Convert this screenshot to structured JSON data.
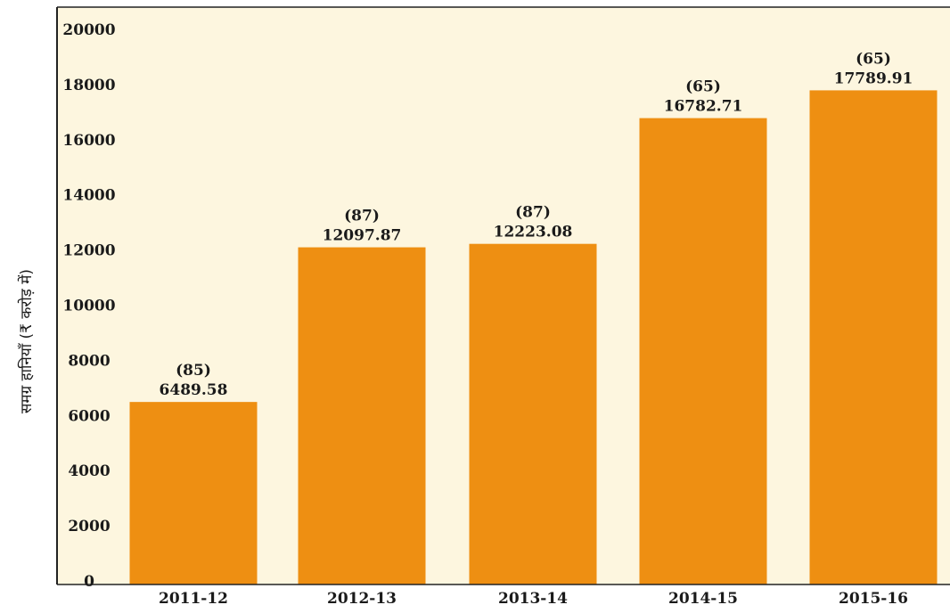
{
  "chart_data": {
    "type": "bar",
    "ylabel": "समग्र हानियाँ (₹ करोड़ में)",
    "categories": [
      "2011-12",
      "2012-13",
      "2013-14",
      "2014-15",
      "2015-16"
    ],
    "values": [
      6489.58,
      12097.87,
      12223.08,
      16782.71,
      17789.91
    ],
    "value_labels": [
      "6489.58",
      "12097.87",
      "12223.08",
      "16782.71",
      "17789.91"
    ],
    "secondary_labels": [
      "(85)",
      "(87)",
      "(87)",
      "(65)",
      "(65)"
    ],
    "yticks": [
      "0",
      "2000",
      "4000",
      "6000",
      "8000",
      "10000",
      "12000",
      "14000",
      "16000",
      "18000",
      "20000"
    ],
    "ylim": [
      0,
      20000
    ],
    "grid": false,
    "legend": "none",
    "colors": {
      "bar": "#ee8f12",
      "plot_background": "#fdf6df",
      "axis": "#222222"
    }
  }
}
